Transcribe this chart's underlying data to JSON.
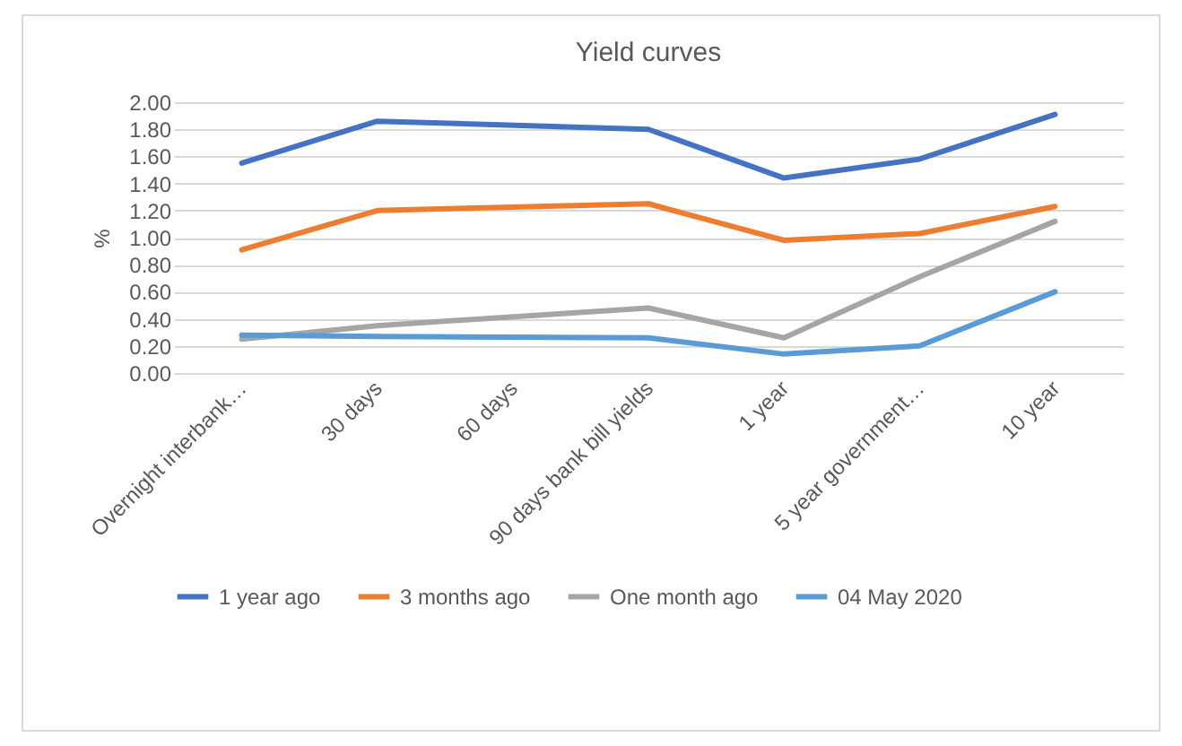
{
  "chart_data": {
    "type": "line",
    "title": "Yield curves",
    "ylabel": "%",
    "categories": [
      "Overnight interbank…",
      "30 days",
      "60 days",
      "90 days bank bill yields",
      "1 year",
      "5 year government…",
      "10 year"
    ],
    "series": [
      {
        "name": "1 year ago",
        "color": "#4472c4",
        "values": [
          1.55,
          1.86,
          null,
          1.8,
          1.44,
          1.58,
          1.91
        ]
      },
      {
        "name": "3 months ago",
        "color": "#ed7d31",
        "values": [
          0.91,
          1.2,
          null,
          1.25,
          0.98,
          1.03,
          1.23
        ]
      },
      {
        "name": "One month ago",
        "color": "#a5a5a5",
        "values": [
          0.25,
          0.35,
          null,
          0.48,
          0.26,
          0.71,
          1.12
        ]
      },
      {
        "name": "04 May 2020",
        "color": "#5b9bd5",
        "values": [
          0.28,
          0.27,
          null,
          0.26,
          0.14,
          0.2,
          0.6
        ]
      }
    ],
    "ylim": [
      0,
      2
    ],
    "yticks": [
      {
        "value": 0,
        "label": "0.00"
      },
      {
        "value": 0.2,
        "label": "0.20"
      },
      {
        "value": 0.4,
        "label": "0.40"
      },
      {
        "value": 0.6,
        "label": "0.60"
      },
      {
        "value": 0.8,
        "label": "0.80"
      },
      {
        "value": 1,
        "label": "1.00"
      },
      {
        "value": 1.2,
        "label": "1.20"
      },
      {
        "value": 1.4,
        "label": "1.40"
      },
      {
        "value": 1.6,
        "label": "1.60"
      },
      {
        "value": 1.8,
        "label": "1.80"
      },
      {
        "value": 2,
        "label": "2.00"
      }
    ],
    "grid": "y",
    "legend": "bottom",
    "marker": "none",
    "line_style": "solid"
  }
}
